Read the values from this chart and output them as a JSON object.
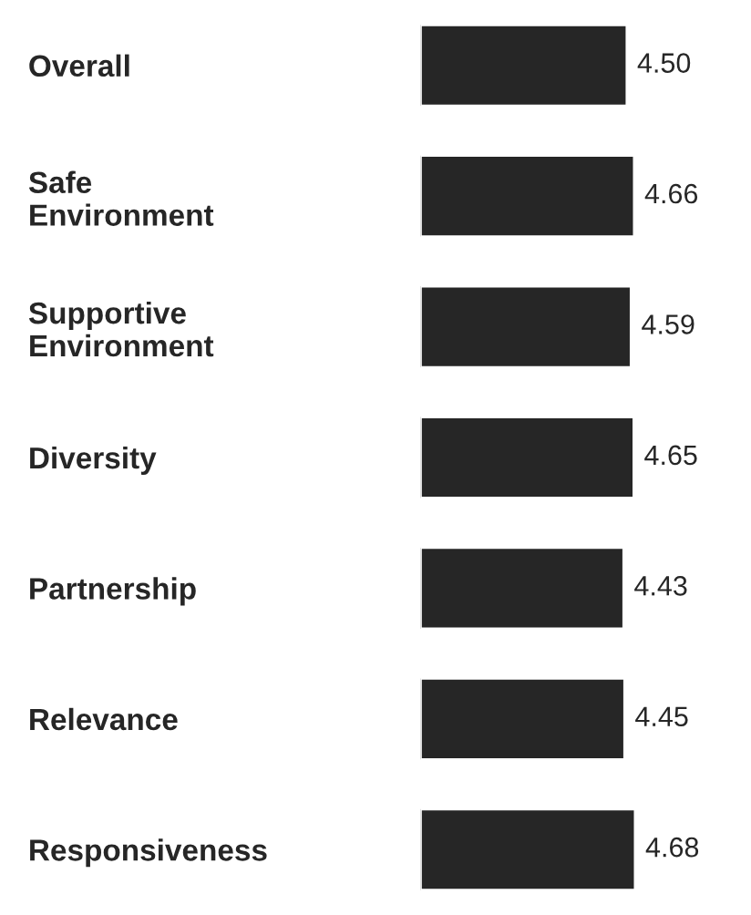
{
  "chart_data": {
    "type": "bar",
    "orientation": "horizontal",
    "categories": [
      "Overall",
      "Safe\nEnvironment",
      "Supportive\nEnvironment",
      "Diversity",
      "Partnership",
      "Relevance",
      "Responsiveness"
    ],
    "values": [
      4.5,
      4.66,
      4.59,
      4.65,
      4.43,
      4.45,
      4.68
    ],
    "value_labels": [
      "4.50",
      "4.66",
      "4.59",
      "4.65",
      "4.43",
      "4.45",
      "4.68"
    ],
    "color": "#262626",
    "grid": false,
    "legend": false
  }
}
